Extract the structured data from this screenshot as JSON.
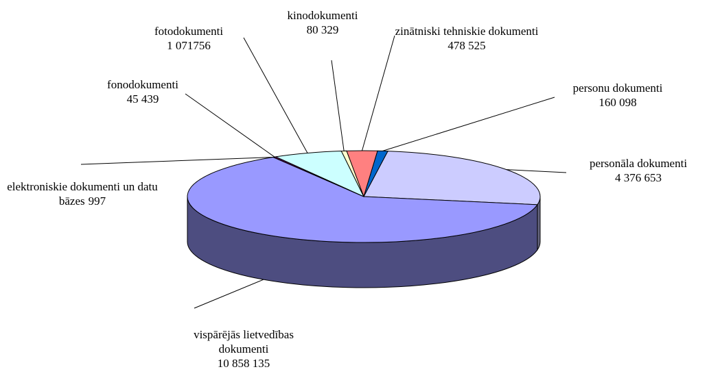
{
  "chart_data": {
    "type": "pie3d",
    "categories": [
      "zinātniski tehniskie dokumenti",
      "personu dokumenti",
      "personāla dokumenti",
      "vispārējās lietvedības dokumenti",
      "elektroniskie dokumenti un datu bāzes",
      "fonodokumenti",
      "fotodokumenti",
      "kinodokumenti"
    ],
    "values": [
      478525,
      160098,
      4376653,
      10858135,
      997,
      45439,
      1071756,
      80329
    ],
    "value_labels": [
      "478 525",
      "160 098",
      "4 376 653",
      "10 858 135",
      "997",
      "45 439",
      "1 071756",
      "80 329"
    ],
    "colors": [
      "#ff8080",
      "#0066cc",
      "#ccccff",
      "#9999ff",
      "#993366",
      "#660066",
      "#ccffff",
      "#ffffcc"
    ]
  }
}
